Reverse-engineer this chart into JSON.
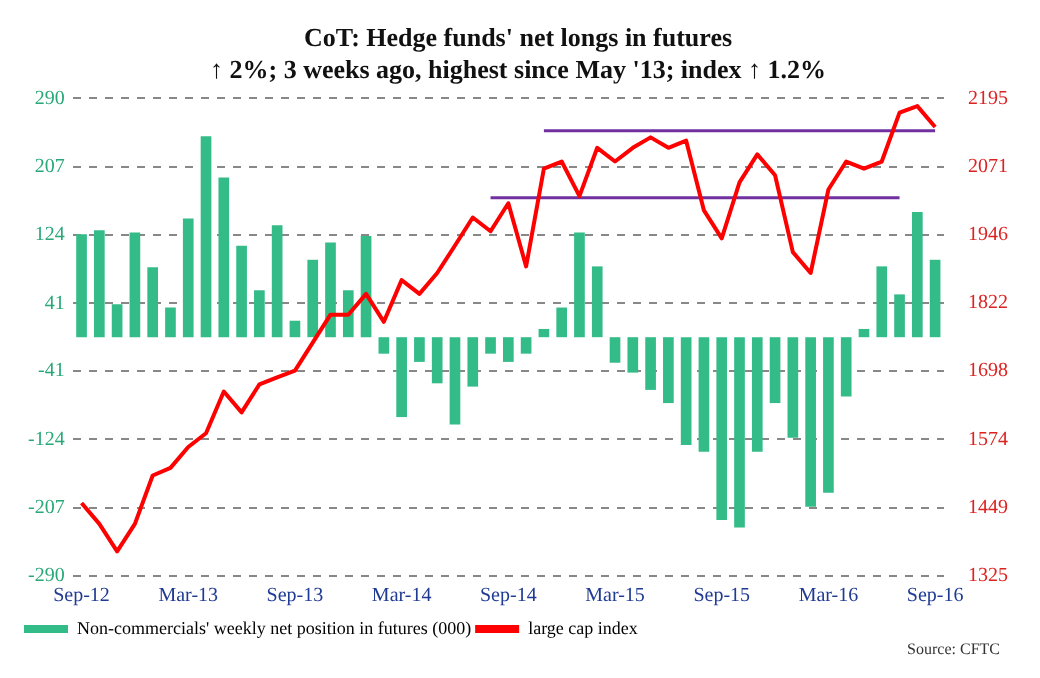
{
  "chart_data": {
    "type": "bar",
    "title": "CoT: Hedge funds' net longs in futures",
    "subtitle": "↑ 2%; 3 weeks ago, highest since May '13; index ↑ 1.2%",
    "categories": [
      "Sep-12",
      null,
      null,
      null,
      null,
      null,
      "Mar-13",
      null,
      null,
      null,
      null,
      null,
      "Sep-13",
      null,
      null,
      null,
      null,
      null,
      "Mar-14",
      null,
      null,
      null,
      null,
      null,
      "Sep-14",
      null,
      null,
      null,
      null,
      null,
      "Mar-15",
      null,
      null,
      null,
      null,
      null,
      "Sep-15",
      null,
      null,
      null,
      null,
      null,
      "Mar-16",
      null,
      null,
      null,
      null,
      null,
      "Sep-16"
    ],
    "series": [
      {
        "name": "Non-commercials' weekly net position in futures (000)",
        "color": "#33bb88",
        "values": [
          125,
          130,
          40,
          127,
          85,
          36,
          144,
          244,
          194,
          111,
          57,
          136,
          20,
          94,
          115,
          57,
          123,
          -20,
          -97,
          -30,
          -56,
          -106,
          -60,
          -20,
          -30,
          -20,
          10,
          36,
          127,
          86,
          -31,
          -43,
          -64,
          -80,
          -131,
          -139,
          -222,
          -231,
          -139,
          -80,
          -122,
          -206,
          -189,
          -72,
          10,
          86,
          52,
          152,
          94
        ]
      },
      {
        "type": "line",
        "axis": "y2",
        "name": "large cap index",
        "color": "#ff0000",
        "values": [
          1458,
          1420,
          1370,
          1420,
          1508,
          1522,
          1560,
          1585,
          1661,
          1623,
          1674,
          1687,
          1699,
          1750,
          1801,
          1801,
          1839,
          1788,
          1864,
          1839,
          1877,
          1927,
          1978,
          1953,
          2004,
          1889,
          2067,
          2080,
          2017,
          2105,
          2080,
          2105,
          2124,
          2105,
          2118,
          1991,
          1940,
          2042,
          2093,
          2055,
          1915,
          1877,
          2029,
          2080,
          2067,
          2080,
          2169,
          2181,
          2143
        ]
      },
      {
        "type": "line",
        "axis": "y2",
        "color": "#7030a0",
        "values": [
          null,
          null,
          null,
          null,
          null,
          null,
          null,
          null,
          null,
          null,
          null,
          null,
          null,
          null,
          null,
          null,
          null,
          null,
          null,
          null,
          null,
          null,
          null,
          null,
          null,
          null,
          2136,
          2136,
          2136,
          2136,
          2136,
          2136,
          2136,
          2136,
          2136,
          2136,
          2136,
          2136,
          2136,
          2136,
          2136,
          2136,
          2136,
          2136,
          2136,
          2136,
          2136,
          2136,
          2136
        ]
      },
      {
        "type": "line",
        "axis": "y2",
        "color": "#7030a0",
        "values": [
          null,
          null,
          null,
          null,
          null,
          null,
          null,
          null,
          null,
          null,
          null,
          null,
          null,
          null,
          null,
          null,
          null,
          null,
          null,
          null,
          null,
          null,
          null,
          2014,
          2014,
          2014,
          2014,
          2014,
          2014,
          2014,
          2014,
          2014,
          2014,
          2014,
          2014,
          2014,
          2014,
          2014,
          2014,
          2014,
          2014,
          2014,
          2014,
          2014,
          2014,
          2014,
          2014,
          null,
          null
        ]
      }
    ],
    "ylim": [
      -290,
      290
    ],
    "yticks": [
      -290,
      -207,
      -124,
      -41,
      41,
      124,
      207,
      290
    ],
    "y2lim": [
      1325,
      2195
    ],
    "y2ticks": [
      1325,
      1449,
      1574,
      1698,
      1822,
      1946,
      2071,
      2195
    ],
    "grid": "y",
    "legend": "bottom",
    "line_style": "solid",
    "marker": "none",
    "annotations": [
      "Source: CFTC"
    ]
  }
}
